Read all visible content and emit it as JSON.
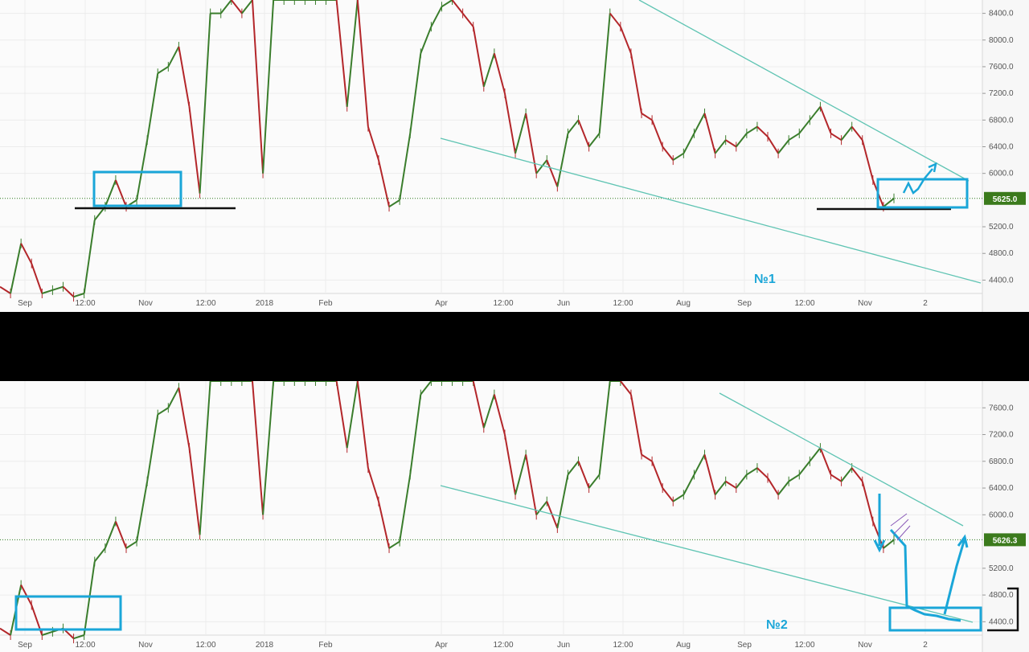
{
  "colors": {
    "up": "#3a7d2c",
    "down": "#b3262a",
    "trendline": "#5fc4b3",
    "annotation": "#1aa6d8",
    "support": "#111111",
    "price_tag": "#3b7a1c",
    "grid": "#ececec"
  },
  "chart_data": [
    {
      "type": "line",
      "panel": "top",
      "annotation_text": "№1",
      "current_price_label": "5625.0",
      "ylim": [
        4200,
        8600
      ],
      "y_ticks": [
        "8400.0",
        "8000.0",
        "7600.0",
        "7200.0",
        "6800.0",
        "6400.0",
        "6000.0",
        "5625.0",
        "5200.0",
        "4800.0",
        "4400.0"
      ],
      "x_ticks": [
        "Sep",
        "12:00",
        "Nov",
        "12:00",
        "2018",
        "Feb",
        "Apr",
        "12:00",
        "Jun",
        "12:00",
        "Aug",
        "Sep",
        "12:00",
        "Nov",
        "2"
      ],
      "series": [
        {
          "values": [
            4300,
            4200,
            4950,
            4650,
            4200,
            4250,
            4300,
            4150,
            4200,
            5300,
            5500,
            5900,
            5500,
            5600,
            6500,
            7500,
            7600,
            7900,
            7000,
            5700,
            8400,
            8400,
            8600,
            8400,
            8600,
            6000,
            8600,
            8600,
            8600,
            8600,
            8600,
            8600,
            8600,
            7000,
            8600,
            6700,
            6200,
            5500,
            5600,
            6600,
            7800,
            8200,
            8500,
            8600,
            8400,
            8200,
            7300,
            7800,
            7200,
            6300,
            6900,
            6000,
            6200,
            5800,
            6600,
            6800,
            6400,
            6600,
            8400,
            8200,
            7800,
            6900,
            6800,
            6400,
            6200,
            6300,
            6600,
            6900,
            6300,
            6500,
            6400,
            6600,
            6700,
            6550,
            6300,
            6500,
            6600,
            6800,
            7000,
            6600,
            6500,
            6700,
            6500,
            5900,
            5500,
            5625
          ]
        }
      ]
    },
    {
      "type": "line",
      "panel": "bottom",
      "annotation_text": "№2",
      "current_price_label": "5626.3",
      "ylim": [
        4200,
        8000
      ],
      "y_ticks": [
        "7600.0",
        "7200.0",
        "6800.0",
        "6400.0",
        "6000.0",
        "5626.3",
        "5200.0",
        "4800.0",
        "4400.0"
      ],
      "x_ticks": [
        "Sep",
        "12:00",
        "Nov",
        "12:00",
        "2018",
        "Feb",
        "Apr",
        "12:00",
        "Jun",
        "12:00",
        "Aug",
        "Sep",
        "12:00",
        "Nov",
        "2"
      ],
      "series": [
        {
          "values": [
            4300,
            4200,
            4950,
            4650,
            4200,
            4250,
            4300,
            4150,
            4200,
            5300,
            5500,
            5900,
            5500,
            5600,
            6500,
            7500,
            7600,
            7900,
            7000,
            5700,
            8000,
            8000,
            8000,
            8000,
            8000,
            6000,
            8000,
            8000,
            8000,
            8000,
            8000,
            8000,
            8000,
            7000,
            8000,
            6700,
            6200,
            5500,
            5600,
            6600,
            7800,
            8000,
            8000,
            8000,
            8000,
            8000,
            7300,
            7800,
            7200,
            6300,
            6900,
            6000,
            6200,
            5800,
            6600,
            6800,
            6400,
            6600,
            8000,
            8000,
            7800,
            6900,
            6800,
            6400,
            6200,
            6300,
            6600,
            6900,
            6300,
            6500,
            6400,
            6600,
            6700,
            6550,
            6300,
            6500,
            6600,
            6800,
            7000,
            6600,
            6500,
            6700,
            6500,
            5900,
            5500,
            5626
          ]
        }
      ]
    }
  ]
}
